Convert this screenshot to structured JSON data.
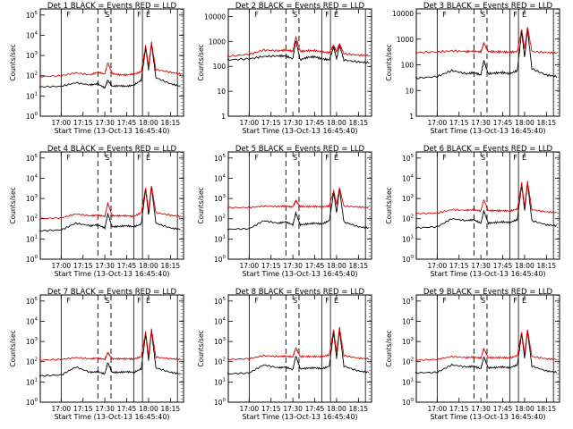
{
  "figure": {
    "ylabel": "Counts/sec",
    "xlabel": "Start Time (13-Oct-13 16:45:40)",
    "xticks": [
      "17:00",
      "17:15",
      "17:30",
      "17:45",
      "18:00",
      "18:15"
    ],
    "xtick_hours": [
      17.0,
      17.25,
      17.5,
      17.75,
      18.0,
      18.25
    ],
    "xlim_hours": [
      16.7611,
      18.4
    ],
    "region_labels": [
      "F",
      "S",
      "F",
      "E"
    ],
    "colors": {
      "events": "#000000",
      "lld": "#dd0000",
      "axes": "#000000"
    }
  },
  "chart_data": [
    {
      "type": "line",
      "title": "Det 1 BLACK = Events RED = LLD",
      "ylabel": "Counts/sec",
      "xlabel": "Start Time (13-Oct-13 16:45:40)",
      "yscale": "log",
      "ylim": [
        1,
        200000
      ],
      "yticks": [
        "10^0",
        "10^1",
        "10^2",
        "10^3",
        "10^4",
        "10^5"
      ],
      "x": [
        "16:45",
        "17:00",
        "17:10",
        "17:20",
        "17:25",
        "17:30",
        "17:32",
        "17:35",
        "17:40",
        "17:45",
        "17:50",
        "17:55",
        "17:58",
        "18:00",
        "18:02",
        "18:05",
        "18:15",
        "18:22"
      ],
      "series": [
        {
          "name": "Events",
          "color": "#000000",
          "values": [
            28,
            30,
            45,
            35,
            40,
            25,
            60,
            30,
            32,
            30,
            35,
            60,
            2500,
            200,
            4000,
            80,
            40,
            30
          ]
        },
        {
          "name": "LLD",
          "color": "#dd0000",
          "values": [
            90,
            100,
            140,
            110,
            150,
            120,
            450,
            130,
            110,
            110,
            120,
            160,
            3200,
            300,
            4500,
            200,
            150,
            120
          ]
        }
      ]
    },
    {
      "type": "line",
      "title": "Det 2 BLACK = Events RED = LLD",
      "ylabel": "Counts/sec",
      "xlabel": "Start Time (13-Oct-13 16:45:40)",
      "yscale": "log",
      "ylim": [
        1,
        20000
      ],
      "yticks": [
        "1",
        "10",
        "100",
        "1000",
        "10000"
      ],
      "x": [
        "16:45",
        "17:00",
        "17:10",
        "17:20",
        "17:25",
        "17:30",
        "17:32",
        "17:35",
        "17:40",
        "17:45",
        "17:50",
        "17:55",
        "17:58",
        "18:00",
        "18:02",
        "18:05",
        "18:15",
        "18:22"
      ],
      "series": [
        {
          "name": "Events",
          "color": "#000000",
          "values": [
            180,
            200,
            250,
            260,
            260,
            200,
            1100,
            180,
            230,
            240,
            200,
            180,
            600,
            200,
            700,
            180,
            150,
            140
          ]
        },
        {
          "name": "LLD",
          "color": "#dd0000",
          "values": [
            250,
            300,
            450,
            420,
            450,
            400,
            1500,
            400,
            420,
            430,
            380,
            350,
            700,
            380,
            800,
            320,
            280,
            270
          ]
        }
      ]
    },
    {
      "type": "line",
      "title": "Det 3 BLACK = Events RED = LLD",
      "ylabel": "Counts/sec",
      "xlabel": "Start Time (13-Oct-13 16:45:40)",
      "yscale": "log",
      "ylim": [
        1,
        15000
      ],
      "yticks": [
        "1",
        "10",
        "100",
        "1000",
        "10000"
      ],
      "x": [
        "16:45",
        "17:00",
        "17:10",
        "17:20",
        "17:25",
        "17:30",
        "17:32",
        "17:35",
        "17:40",
        "17:45",
        "17:50",
        "17:55",
        "17:58",
        "18:00",
        "18:02",
        "18:05",
        "18:15",
        "18:22"
      ],
      "series": [
        {
          "name": "Events",
          "color": "#000000",
          "values": [
            30,
            35,
            60,
            45,
            50,
            40,
            150,
            45,
            48,
            50,
            45,
            60,
            2000,
            200,
            2500,
            70,
            40,
            35
          ]
        },
        {
          "name": "LLD",
          "color": "#dd0000",
          "values": [
            300,
            320,
            350,
            330,
            340,
            320,
            700,
            330,
            320,
            320,
            310,
            330,
            2500,
            400,
            3000,
            330,
            300,
            290
          ]
        }
      ]
    },
    {
      "type": "line",
      "title": "Det 4 BLACK = Events RED = LLD",
      "ylabel": "Counts/sec",
      "xlabel": "Start Time (13-Oct-13 16:45:40)",
      "yscale": "log",
      "ylim": [
        1,
        200000
      ],
      "yticks": [
        "10^0",
        "10^1",
        "10^2",
        "10^3",
        "10^4",
        "10^5"
      ],
      "x": [
        "16:45",
        "17:00",
        "17:10",
        "17:20",
        "17:25",
        "17:30",
        "17:32",
        "17:35",
        "17:40",
        "17:45",
        "17:50",
        "17:55",
        "17:58",
        "18:00",
        "18:02",
        "18:05",
        "18:15",
        "18:22"
      ],
      "series": [
        {
          "name": "Events",
          "color": "#000000",
          "values": [
            25,
            28,
            60,
            45,
            50,
            35,
            180,
            40,
            42,
            45,
            40,
            55,
            3000,
            150,
            4000,
            60,
            35,
            30
          ]
        },
        {
          "name": "LLD",
          "color": "#dd0000",
          "values": [
            100,
            110,
            170,
            140,
            150,
            130,
            600,
            140,
            140,
            140,
            130,
            200,
            3500,
            250,
            4500,
            200,
            150,
            130
          ]
        }
      ]
    },
    {
      "type": "line",
      "title": "Det 5 BLACK = Events RED = LLD",
      "ylabel": "Counts/sec",
      "xlabel": "Start Time (13-Oct-13 16:45:40)",
      "yscale": "log",
      "ylim": [
        1,
        200000
      ],
      "yticks": [
        "10^0",
        "10^1",
        "10^2",
        "10^3",
        "10^4",
        "10^5"
      ],
      "x": [
        "16:45",
        "17:00",
        "17:10",
        "17:20",
        "17:25",
        "17:30",
        "17:32",
        "17:35",
        "17:40",
        "17:45",
        "17:50",
        "17:55",
        "17:58",
        "18:00",
        "18:02",
        "18:05",
        "18:15",
        "18:22"
      ],
      "series": [
        {
          "name": "Events",
          "color": "#000000",
          "values": [
            30,
            32,
            80,
            60,
            70,
            50,
            200,
            50,
            55,
            60,
            55,
            80,
            2000,
            200,
            3000,
            70,
            40,
            35
          ]
        },
        {
          "name": "LLD",
          "color": "#dd0000",
          "values": [
            350,
            360,
            420,
            400,
            420,
            380,
            800,
            400,
            400,
            400,
            390,
            420,
            2500,
            500,
            3500,
            420,
            380,
            360
          ]
        }
      ]
    },
    {
      "type": "line",
      "title": "Det 6 BLACK = Events RED = LLD",
      "ylabel": "Counts/sec",
      "xlabel": "Start Time (13-Oct-13 16:45:40)",
      "yscale": "log",
      "ylim": [
        1,
        200000
      ],
      "yticks": [
        "10^0",
        "10^1",
        "10^2",
        "10^3",
        "10^4",
        "10^5"
      ],
      "x": [
        "16:45",
        "17:00",
        "17:10",
        "17:20",
        "17:25",
        "17:30",
        "17:32",
        "17:35",
        "17:40",
        "17:45",
        "17:50",
        "17:55",
        "17:58",
        "18:00",
        "18:02",
        "18:05",
        "18:15",
        "18:22"
      ],
      "series": [
        {
          "name": "Events",
          "color": "#000000",
          "values": [
            35,
            40,
            100,
            80,
            90,
            60,
            250,
            60,
            65,
            70,
            65,
            90,
            5000,
            250,
            6000,
            80,
            50,
            45
          ]
        },
        {
          "name": "LLD",
          "color": "#dd0000",
          "values": [
            180,
            190,
            280,
            260,
            280,
            240,
            900,
            250,
            250,
            250,
            240,
            300,
            6000,
            400,
            7000,
            280,
            220,
            200
          ]
        }
      ]
    },
    {
      "type": "line",
      "title": "Det 7 BLACK = Events RED = LLD",
      "ylabel": "Counts/sec",
      "xlabel": "Start Time (13-Oct-13 16:45:40)",
      "yscale": "log",
      "ylim": [
        1,
        200000
      ],
      "yticks": [
        "10^0",
        "10^1",
        "10^2",
        "10^3",
        "10^4",
        "10^5"
      ],
      "x": [
        "16:45",
        "17:00",
        "17:10",
        "17:20",
        "17:25",
        "17:30",
        "17:32",
        "17:35",
        "17:40",
        "17:45",
        "17:50",
        "17:55",
        "17:58",
        "18:00",
        "18:02",
        "18:05",
        "18:15",
        "18:22"
      ],
      "series": [
        {
          "name": "Events",
          "color": "#000000",
          "values": [
            20,
            22,
            55,
            30,
            32,
            25,
            90,
            30,
            30,
            32,
            30,
            45,
            2500,
            120,
            3500,
            50,
            30,
            25
          ]
        },
        {
          "name": "LLD",
          "color": "#dd0000",
          "values": [
            120,
            130,
            160,
            140,
            150,
            130,
            280,
            140,
            140,
            140,
            135,
            180,
            3000,
            200,
            4000,
            170,
            140,
            130
          ]
        }
      ]
    },
    {
      "type": "line",
      "title": "Det 8 BLACK = Events RED = LLD",
      "ylabel": "Counts/sec",
      "xlabel": "Start Time (13-Oct-13 16:45:40)",
      "yscale": "log",
      "ylim": [
        1,
        200000
      ],
      "yticks": [
        "10^0",
        "10^1",
        "10^2",
        "10^3",
        "10^4",
        "10^5"
      ],
      "x": [
        "16:45",
        "17:00",
        "17:10",
        "17:20",
        "17:25",
        "17:30",
        "17:32",
        "17:35",
        "17:40",
        "17:45",
        "17:50",
        "17:55",
        "17:58",
        "18:00",
        "18:02",
        "18:05",
        "18:15",
        "18:22"
      ],
      "series": [
        {
          "name": "Events",
          "color": "#000000",
          "values": [
            25,
            28,
            70,
            50,
            55,
            40,
            200,
            45,
            48,
            50,
            45,
            60,
            3000,
            150,
            4000,
            60,
            35,
            30
          ]
        },
        {
          "name": "LLD",
          "color": "#dd0000",
          "values": [
            130,
            140,
            200,
            180,
            190,
            170,
            500,
            180,
            180,
            180,
            175,
            220,
            4000,
            300,
            5000,
            200,
            150,
            140
          ]
        }
      ]
    },
    {
      "type": "line",
      "title": "Det 9 BLACK = Events RED = LLD",
      "ylabel": "Counts/sec",
      "xlabel": "Start Time (13-Oct-13 16:45:40)",
      "yscale": "log",
      "ylim": [
        1,
        200000
      ],
      "yticks": [
        "10^0",
        "10^1",
        "10^2",
        "10^3",
        "10^4",
        "10^5"
      ],
      "x": [
        "16:45",
        "17:00",
        "17:10",
        "17:20",
        "17:25",
        "17:30",
        "17:32",
        "17:35",
        "17:40",
        "17:45",
        "17:50",
        "17:55",
        "17:58",
        "18:00",
        "18:02",
        "18:05",
        "18:15",
        "18:22"
      ],
      "series": [
        {
          "name": "Events",
          "color": "#000000",
          "values": [
            28,
            30,
            70,
            55,
            60,
            45,
            180,
            50,
            52,
            55,
            50,
            70,
            2500,
            150,
            3500,
            60,
            35,
            30
          ]
        },
        {
          "name": "LLD",
          "color": "#dd0000",
          "values": [
            120,
            130,
            180,
            160,
            170,
            150,
            450,
            160,
            160,
            160,
            155,
            200,
            3000,
            250,
            4000,
            180,
            140,
            130
          ]
        }
      ]
    }
  ]
}
